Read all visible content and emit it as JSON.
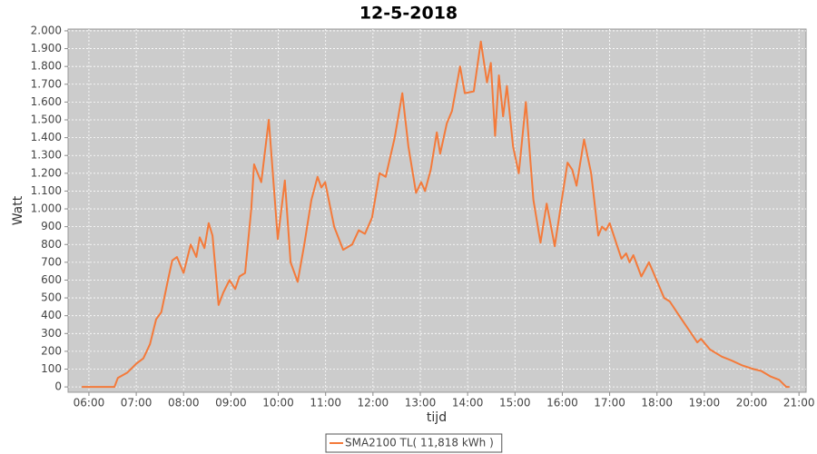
{
  "chart_data": {
    "type": "line",
    "title": "12-5-2018",
    "x_label": "tijd",
    "y_label": "Watt",
    "xlim": [
      5.56,
      21.15
    ],
    "ylim": [
      -30,
      2010
    ],
    "xticks": [
      {
        "value": 6,
        "label": "06:00"
      },
      {
        "value": 7,
        "label": "07:00"
      },
      {
        "value": 8,
        "label": "08:00"
      },
      {
        "value": 9,
        "label": "09:00"
      },
      {
        "value": 10,
        "label": "10:00"
      },
      {
        "value": 11,
        "label": "11:00"
      },
      {
        "value": 12,
        "label": "12:00"
      },
      {
        "value": 13,
        "label": "13:00"
      },
      {
        "value": 14,
        "label": "14:00"
      },
      {
        "value": 15,
        "label": "15:00"
      },
      {
        "value": 16,
        "label": "16:00"
      },
      {
        "value": 17,
        "label": "17:00"
      },
      {
        "value": 18,
        "label": "18:00"
      },
      {
        "value": 19,
        "label": "19:00"
      },
      {
        "value": 20,
        "label": "20:00"
      },
      {
        "value": 21,
        "label": "21:00"
      }
    ],
    "yticks": [
      0,
      100,
      200,
      300,
      400,
      500,
      600,
      700,
      800,
      900,
      {
        "value": 1000,
        "label": "1.000"
      },
      {
        "value": 1100,
        "label": "1.100"
      },
      {
        "value": 1200,
        "label": "1.200"
      },
      {
        "value": 1300,
        "label": "1.300"
      },
      {
        "value": 1400,
        "label": "1.400"
      },
      {
        "value": 1500,
        "label": "1.500"
      },
      {
        "value": 1600,
        "label": "1.600"
      },
      {
        "value": 1700,
        "label": "1.700"
      },
      {
        "value": 1800,
        "label": "1.800"
      },
      {
        "value": 1900,
        "label": "1.900"
      },
      {
        "value": 2000,
        "label": "2.000"
      }
    ],
    "grid": true,
    "x": [
      5.85,
      6.54,
      6.61,
      6.81,
      7.0,
      7.15,
      7.29,
      7.42,
      7.53,
      7.67,
      7.76,
      7.86,
      8.0,
      8.15,
      8.27,
      8.34,
      8.44,
      8.53,
      8.61,
      8.74,
      8.84,
      8.97,
      9.09,
      9.18,
      9.3,
      9.43,
      9.49,
      9.64,
      9.8,
      9.99,
      10.14,
      10.26,
      10.41,
      10.55,
      10.7,
      10.83,
      10.91,
      10.99,
      11.18,
      11.37,
      11.56,
      11.7,
      11.83,
      11.98,
      12.14,
      12.27,
      12.46,
      12.62,
      12.75,
      12.91,
      13.02,
      13.1,
      13.22,
      13.35,
      13.42,
      13.56,
      13.67,
      13.84,
      13.94,
      14.13,
      14.28,
      14.41,
      14.49,
      14.58,
      14.66,
      14.75,
      14.83,
      14.96,
      15.08,
      15.23,
      15.39,
      15.54,
      15.67,
      15.84,
      15.96,
      16.11,
      16.21,
      16.3,
      16.46,
      16.61,
      16.76,
      16.84,
      16.92,
      17.0,
      17.15,
      17.25,
      17.35,
      17.42,
      17.5,
      17.67,
      17.83,
      17.96,
      18.15,
      18.27,
      18.47,
      18.7,
      18.85,
      18.93,
      19.12,
      19.37,
      19.56,
      19.81,
      20.04,
      20.2,
      20.39,
      20.58,
      20.73,
      20.8
    ],
    "series": [
      {
        "name": "SMA2100 TL( 11,818 kWh )",
        "color": "#f47a3a",
        "values": [
          0,
          0,
          50,
          80,
          130,
          160,
          240,
          380,
          420,
          600,
          710,
          730,
          640,
          800,
          730,
          840,
          780,
          920,
          850,
          460,
          530,
          600,
          550,
          620,
          640,
          1000,
          1250,
          1150,
          1500,
          830,
          1160,
          700,
          590,
          800,
          1050,
          1180,
          1120,
          1150,
          900,
          770,
          800,
          880,
          860,
          950,
          1200,
          1180,
          1400,
          1650,
          1350,
          1090,
          1150,
          1100,
          1220,
          1430,
          1310,
          1480,
          1550,
          1800,
          1650,
          1660,
          1940,
          1710,
          1820,
          1410,
          1750,
          1520,
          1690,
          1350,
          1200,
          1600,
          1050,
          810,
          1030,
          790,
          1000,
          1260,
          1220,
          1130,
          1390,
          1200,
          850,
          900,
          880,
          920,
          800,
          720,
          750,
          700,
          740,
          620,
          700,
          620,
          500,
          480,
          400,
          310,
          250,
          270,
          210,
          170,
          150,
          120,
          100,
          90,
          60,
          40,
          0,
          0
        ]
      }
    ]
  }
}
